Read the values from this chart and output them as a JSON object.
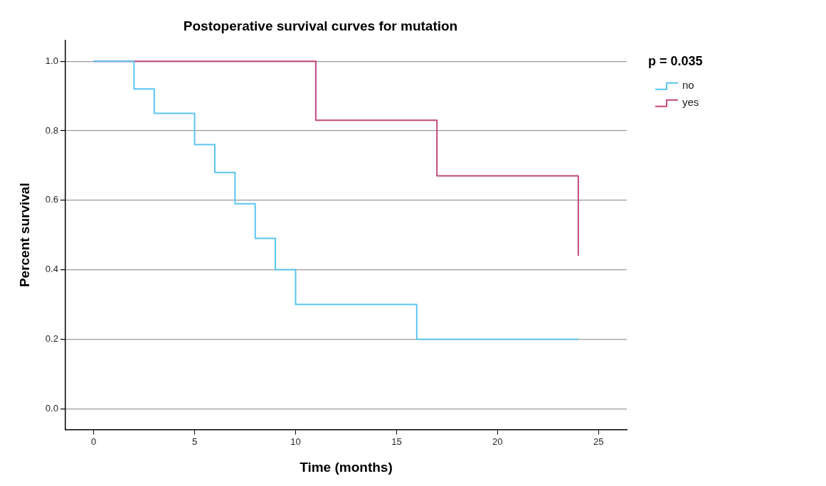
{
  "chart_data": {
    "type": "step",
    "title": "Postoperative survival curves for mutation",
    "xlabel": "Time (months)",
    "ylabel": "Percent survival",
    "legend_title": "p = 0.035",
    "series": [
      {
        "name": "no",
        "color": "#5bc4f2",
        "x": [
          0,
          2,
          3,
          5,
          6,
          7,
          8,
          9,
          10,
          16,
          24
        ],
        "values": [
          1,
          0.92,
          0.85,
          0.76,
          0.68,
          0.59,
          0.49,
          0.4,
          0.3,
          0.2,
          0.2
        ]
      },
      {
        "name": "yes",
        "color": "#c2477c",
        "x": [
          0,
          11,
          17,
          24
        ],
        "values": [
          1,
          0.83,
          0.67,
          0.44
        ]
      }
    ],
    "xlim": [
      -1.4,
      26.4
    ],
    "xticks": [
      0,
      5,
      10,
      15,
      20,
      25
    ],
    "ylim": [
      -0.06,
      1.06
    ],
    "yticks": [
      {
        "value": 0,
        "label": "0.0"
      },
      {
        "value": 0.2,
        "label": "0.2"
      },
      {
        "value": 0.4,
        "label": "0.4"
      },
      {
        "value": 0.6,
        "label": "0.6"
      },
      {
        "value": 0.8,
        "label": "0.8"
      },
      {
        "value": 1,
        "label": "1.0"
      }
    ],
    "grid": "y",
    "legend": "top right",
    "marker": "none",
    "line_style": "solid"
  }
}
